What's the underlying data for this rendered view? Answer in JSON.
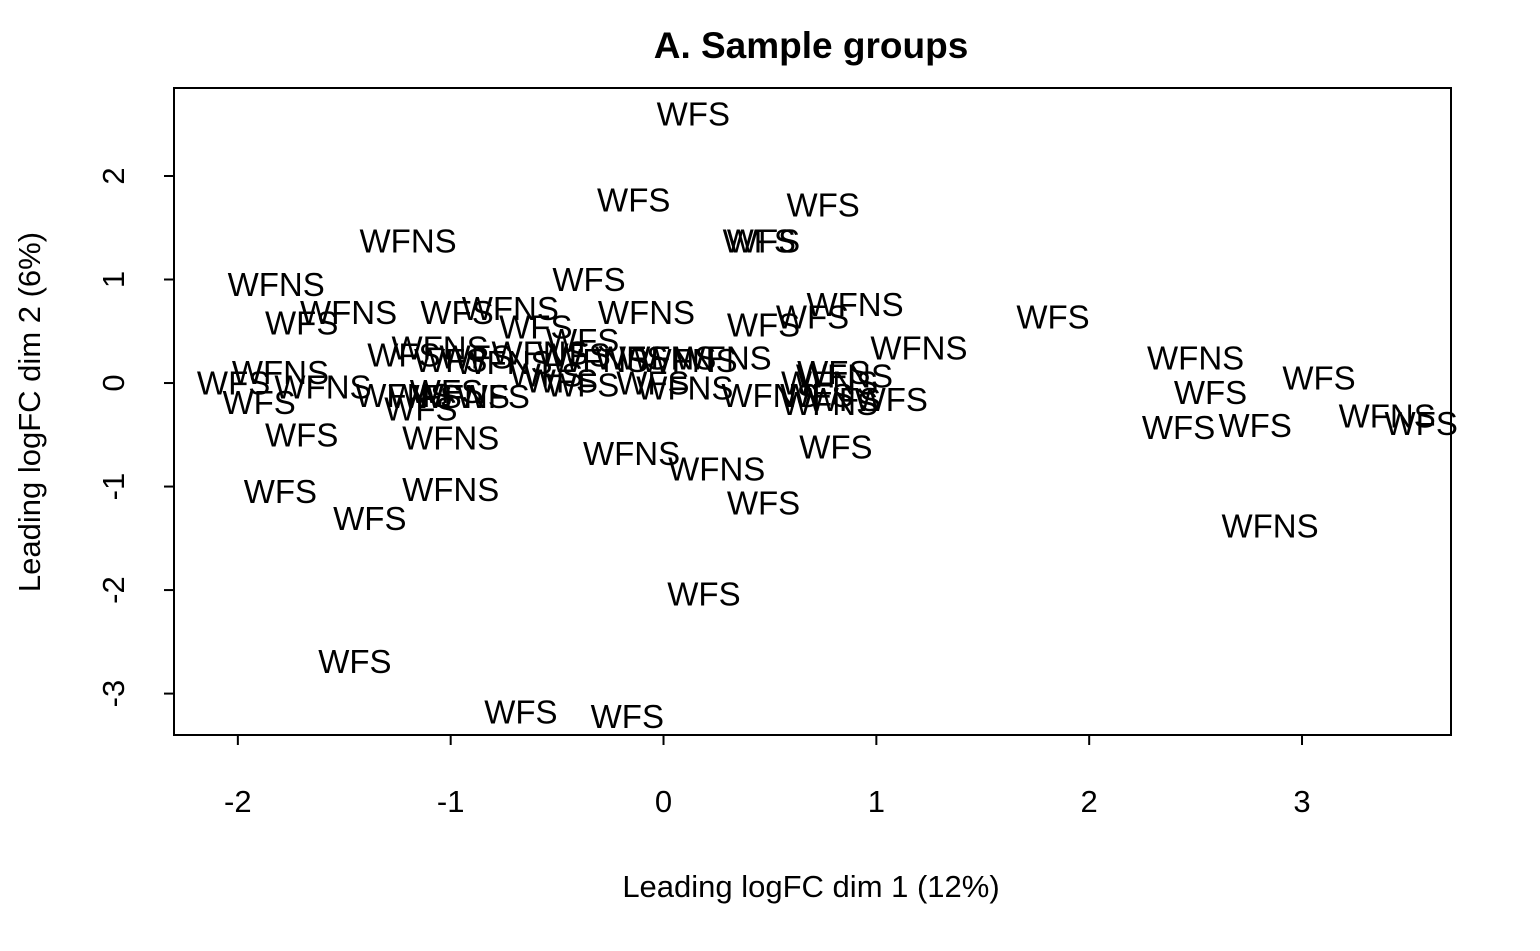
{
  "chart_data": {
    "type": "scatter",
    "title": "A. Sample groups",
    "xlabel": "Leading logFC dim 1 (12%)",
    "ylabel": "Leading logFC dim 2 (6%)",
    "xlim": [
      -2.3,
      3.7
    ],
    "ylim": [
      -3.4,
      2.85
    ],
    "xticks": [
      -2,
      -1,
      0,
      1,
      2,
      3
    ],
    "yticks": [
      -3,
      -2,
      -1,
      0,
      1,
      2
    ],
    "grid": false,
    "legend": "none",
    "marker": "text-label",
    "points": [
      {
        "x": 0.14,
        "y": 2.6,
        "label": "WFS"
      },
      {
        "x": -0.14,
        "y": 1.77,
        "label": "WFS"
      },
      {
        "x": 0.75,
        "y": 1.72,
        "label": "WFS"
      },
      {
        "x": 0.47,
        "y": 1.37,
        "label": "WFS"
      },
      {
        "x": 0.45,
        "y": 1.37,
        "label": "WFS"
      },
      {
        "x": -1.2,
        "y": 1.37,
        "label": "WFNS"
      },
      {
        "x": -0.35,
        "y": 1.0,
        "label": "WFS"
      },
      {
        "x": -1.82,
        "y": 0.95,
        "label": "WFNS"
      },
      {
        "x": -1.48,
        "y": 0.68,
        "label": "WFNS"
      },
      {
        "x": -1.7,
        "y": 0.58,
        "label": "WFS"
      },
      {
        "x": -0.97,
        "y": 0.68,
        "label": "WFS"
      },
      {
        "x": -0.72,
        "y": 0.72,
        "label": "WFNS"
      },
      {
        "x": -0.08,
        "y": 0.68,
        "label": "WFNS"
      },
      {
        "x": -0.6,
        "y": 0.54,
        "label": "WFS"
      },
      {
        "x": -0.38,
        "y": 0.41,
        "label": "WFS"
      },
      {
        "x": 0.47,
        "y": 0.56,
        "label": "WFS"
      },
      {
        "x": 0.7,
        "y": 0.64,
        "label": "WFS"
      },
      {
        "x": 0.9,
        "y": 0.76,
        "label": "WFNS"
      },
      {
        "x": 1.83,
        "y": 0.64,
        "label": "WFS"
      },
      {
        "x": 1.2,
        "y": 0.34,
        "label": "WFNS"
      },
      {
        "x": -1.05,
        "y": 0.34,
        "label": "WFNS"
      },
      {
        "x": -1.22,
        "y": 0.27,
        "label": "WFS"
      },
      {
        "x": -1.0,
        "y": 0.22,
        "label": "WFS"
      },
      {
        "x": -0.88,
        "y": 0.25,
        "label": "WFS"
      },
      {
        "x": -0.75,
        "y": 0.2,
        "label": "WFNS"
      },
      {
        "x": -0.58,
        "y": 0.29,
        "label": "WFNS"
      },
      {
        "x": -0.42,
        "y": 0.27,
        "label": "WFS"
      },
      {
        "x": -0.3,
        "y": 0.22,
        "label": "WFNS"
      },
      {
        "x": -0.15,
        "y": 0.24,
        "label": "WFS"
      },
      {
        "x": 0.02,
        "y": 0.24,
        "label": "WFNS"
      },
      {
        "x": 0.12,
        "y": 0.22,
        "label": "WFNS"
      },
      {
        "x": 0.28,
        "y": 0.24,
        "label": "WFNS"
      },
      {
        "x": -0.55,
        "y": 0.08,
        "label": "WFS"
      },
      {
        "x": -0.48,
        "y": 0.02,
        "label": "WFS"
      },
      {
        "x": -0.38,
        "y": -0.02,
        "label": "WFS"
      },
      {
        "x": -0.05,
        "y": 0.0,
        "label": "WFS"
      },
      {
        "x": 0.8,
        "y": 0.1,
        "label": "WFS"
      },
      {
        "x": 0.85,
        "y": 0.07,
        "label": "WFNS"
      },
      {
        "x": 0.78,
        "y": 0.0,
        "label": "WFNS"
      },
      {
        "x": -1.8,
        "y": 0.1,
        "label": "WFNS"
      },
      {
        "x": -2.02,
        "y": 0.0,
        "label": "WFS"
      },
      {
        "x": -1.6,
        "y": -0.04,
        "label": "WFNS"
      },
      {
        "x": -1.9,
        "y": -0.19,
        "label": "WFS"
      },
      {
        "x": -1.22,
        "y": -0.12,
        "label": "WFNS"
      },
      {
        "x": -1.12,
        "y": -0.13,
        "label": "WFS"
      },
      {
        "x": -1.02,
        "y": -0.08,
        "label": "WFS"
      },
      {
        "x": -0.95,
        "y": -0.13,
        "label": "WFNS"
      },
      {
        "x": -0.8,
        "y": -0.13,
        "label": "WFS"
      },
      {
        "x": -1.14,
        "y": -0.25,
        "label": "WFS"
      },
      {
        "x": 0.1,
        "y": -0.05,
        "label": "WFNS"
      },
      {
        "x": 0.5,
        "y": -0.12,
        "label": "WFNS"
      },
      {
        "x": 0.72,
        "y": -0.12,
        "label": "WFS"
      },
      {
        "x": 0.85,
        "y": -0.16,
        "label": "WFS"
      },
      {
        "x": 0.78,
        "y": -0.2,
        "label": "WFNS"
      },
      {
        "x": 1.07,
        "y": -0.16,
        "label": "WFS"
      },
      {
        "x": -1.7,
        "y": -0.5,
        "label": "WFS"
      },
      {
        "x": -1.0,
        "y": -0.53,
        "label": "WFNS"
      },
      {
        "x": -0.15,
        "y": -0.68,
        "label": "WFNS"
      },
      {
        "x": 0.25,
        "y": -0.83,
        "label": "WFNS"
      },
      {
        "x": 0.81,
        "y": -0.62,
        "label": "WFS"
      },
      {
        "x": 0.47,
        "y": -1.16,
        "label": "WFS"
      },
      {
        "x": -1.8,
        "y": -1.05,
        "label": "WFS"
      },
      {
        "x": -1.0,
        "y": -1.03,
        "label": "WFNS"
      },
      {
        "x": -1.38,
        "y": -1.31,
        "label": "WFS"
      },
      {
        "x": 0.19,
        "y": -2.04,
        "label": "WFS"
      },
      {
        "x": -1.45,
        "y": -2.69,
        "label": "WFS"
      },
      {
        "x": -0.67,
        "y": -3.18,
        "label": "WFS"
      },
      {
        "x": -0.17,
        "y": -3.22,
        "label": "WFS"
      },
      {
        "x": 2.5,
        "y": 0.24,
        "label": "WFNS"
      },
      {
        "x": 2.57,
        "y": -0.09,
        "label": "WFS"
      },
      {
        "x": 2.42,
        "y": -0.43,
        "label": "WFS"
      },
      {
        "x": 2.78,
        "y": -0.41,
        "label": "WFS"
      },
      {
        "x": 3.08,
        "y": 0.05,
        "label": "WFS"
      },
      {
        "x": 3.4,
        "y": -0.32,
        "label": "WFNS"
      },
      {
        "x": 3.56,
        "y": -0.39,
        "label": "WFS"
      },
      {
        "x": 2.85,
        "y": -1.38,
        "label": "WFNS"
      }
    ]
  }
}
